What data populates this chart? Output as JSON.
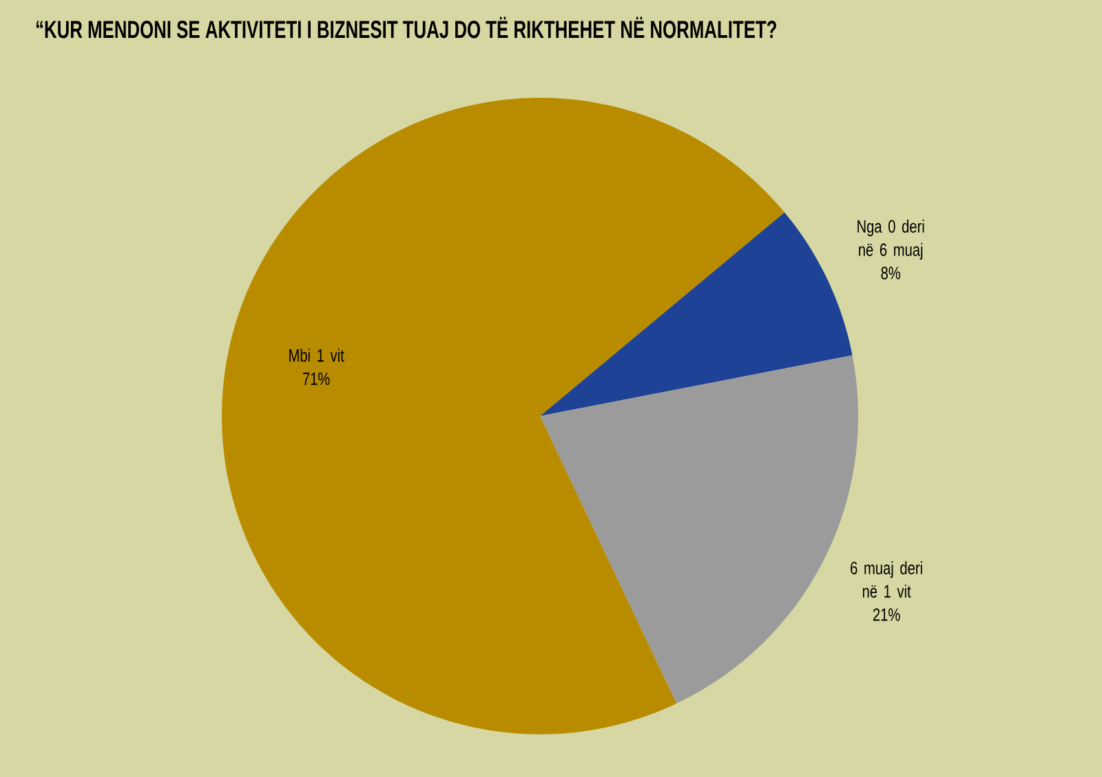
{
  "chart_data": {
    "type": "pie",
    "title": "“KUR MENDONI SE AKTIVITETI I BIZNESIT TUAJ DO TË RIKTHEHET NË NORMALITET?",
    "categories": [
      "Nga 0 deri në 6 muaj",
      "6 muaj deri në 1 vit",
      "Mbi 1 vit"
    ],
    "values": [
      8,
      21,
      71
    ],
    "value_labels": [
      "8%",
      "21%",
      "71%"
    ],
    "colors": [
      "#1e4296",
      "#9b9b9b",
      "#b98c00"
    ]
  }
}
